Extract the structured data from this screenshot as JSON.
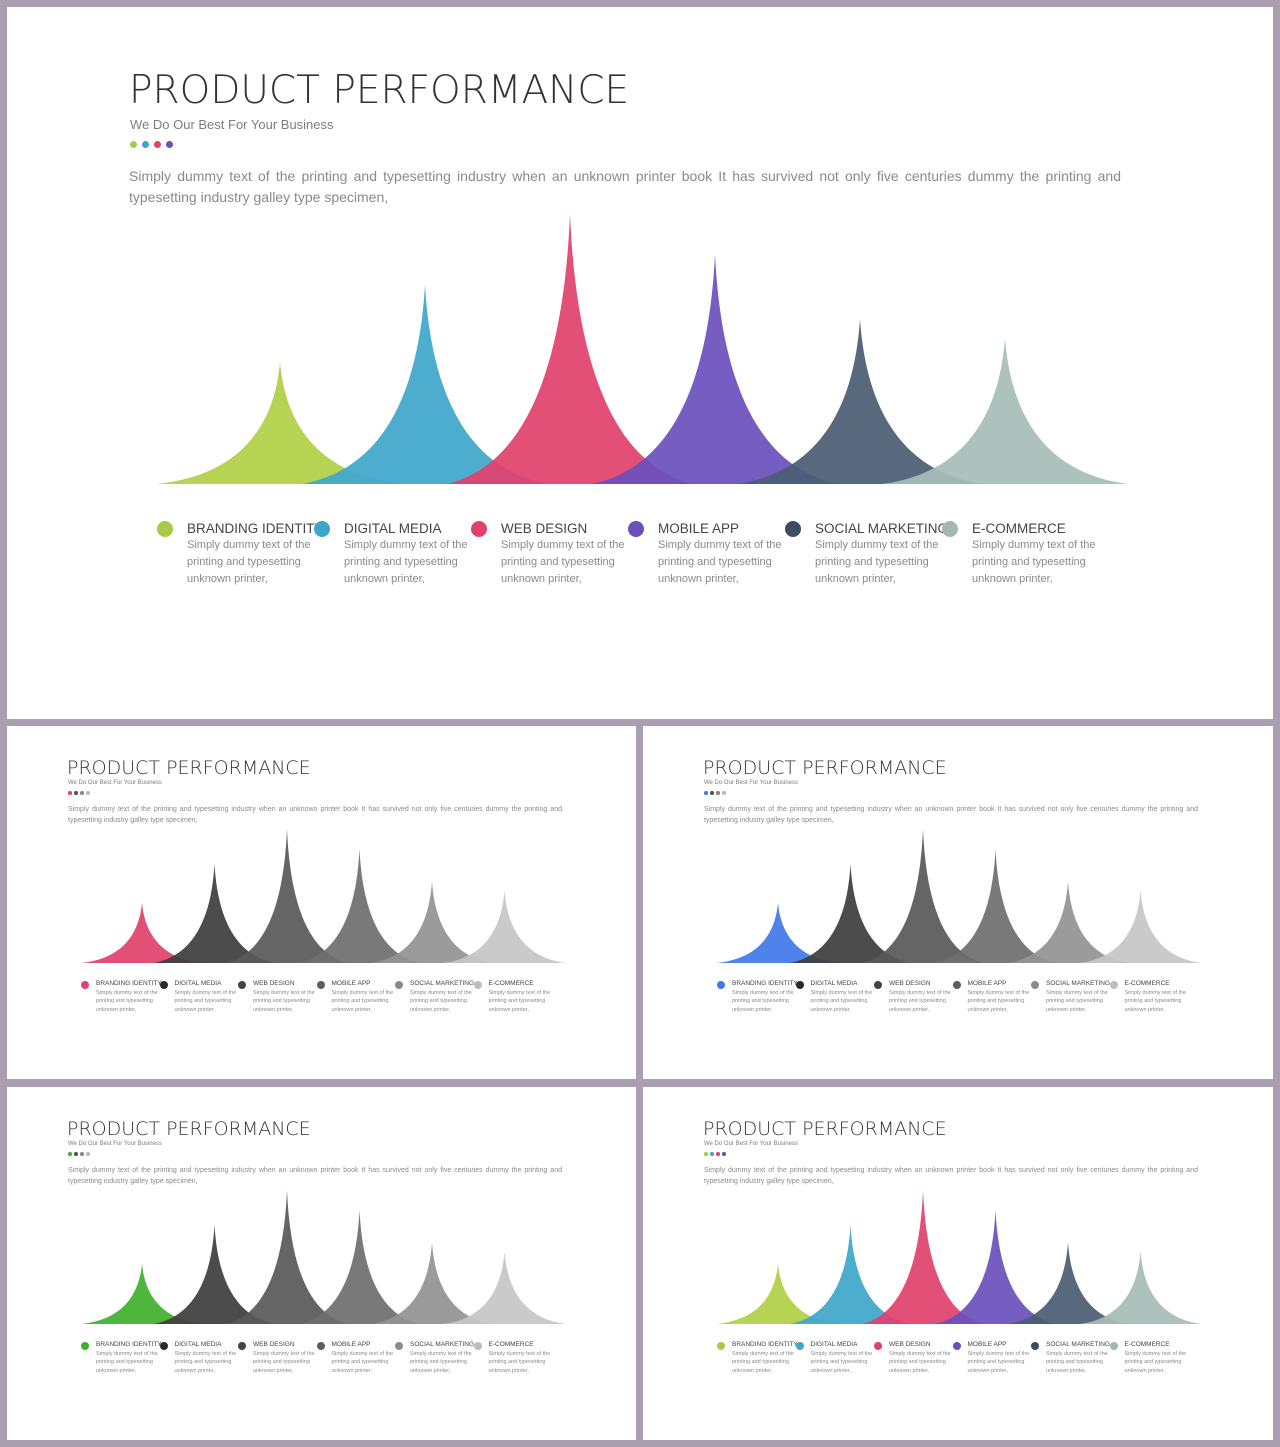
{
  "content": {
    "title": "PRODUCT PERFORMANCE",
    "subtitle": "We Do Our Best For Your Business",
    "description": "Simply dummy text of the printing and typesetting industry when an unknown printer book It has survived not only five centuries dummy the printing and typesetting industry galley type specimen,",
    "items": [
      {
        "label": "BRANDING IDENTITY",
        "desc": "Simply dummy text of the printing and typesetting unknown printer,"
      },
      {
        "label": "DIGITAL MEDIA",
        "desc": "Simply dummy text of the printing and typesetting unknown printer,"
      },
      {
        "label": "WEB DESIGN",
        "desc": "Simply dummy text of the printing and typesetting unknown printer,"
      },
      {
        "label": "MOBILE APP",
        "desc": "Simply dummy text of the printing and typesetting unknown printer,"
      },
      {
        "label": "SOCIAL MARKETING",
        "desc": "Simply dummy text of the printing and typesetting unknown printer,"
      },
      {
        "label": "E-COMMERCE",
        "desc": "Simply dummy text of the printing and typesetting unknown printer,"
      }
    ]
  },
  "peak_levels": [
    0.45,
    0.74,
    1.0,
    0.85,
    0.61,
    0.54
  ],
  "slides": [
    {
      "id": "slide-main",
      "dot_colors": [
        "#a9c94a",
        "#3fa6cb",
        "#e0426d",
        "#6a4fb8"
      ],
      "peak_colors": [
        "#b2d046",
        "#3fa7cb",
        "#e0426d",
        "#6b51bd",
        "#4b5e73",
        "#a7bdb8"
      ],
      "legend_dot_colors": [
        "#a9c94a",
        "#3fa6cb",
        "#e0426d",
        "#6a4fb8",
        "#3b4d61",
        "#a3b8b3"
      ]
    },
    {
      "id": "slide-pink",
      "dot_colors": [
        "#e0426d",
        "#555555",
        "#888888",
        "#bbbbbb"
      ],
      "peak_colors": [
        "#e0426d",
        "#3e3e3e",
        "#595959",
        "#6f6f6f",
        "#939393",
        "#c6c6c6"
      ],
      "legend_dot_colors": [
        "#e0426d",
        "#2a2a2a",
        "#444444",
        "#5e5e5e",
        "#8a8a8a",
        "#bdbdbd"
      ]
    },
    {
      "id": "slide-blue",
      "dot_colors": [
        "#3f7ae8",
        "#555555",
        "#888888",
        "#bbbbbb"
      ],
      "peak_colors": [
        "#3f7ae8",
        "#3e3e3e",
        "#595959",
        "#6f6f6f",
        "#939393",
        "#c6c6c6"
      ],
      "legend_dot_colors": [
        "#3f7ae8",
        "#2a2a2a",
        "#444444",
        "#5e5e5e",
        "#8a8a8a",
        "#bdbdbd"
      ]
    },
    {
      "id": "slide-green",
      "dot_colors": [
        "#3fb02c",
        "#555555",
        "#888888",
        "#bbbbbb"
      ],
      "peak_colors": [
        "#3fb02c",
        "#3e3e3e",
        "#595959",
        "#6f6f6f",
        "#939393",
        "#c6c6c6"
      ],
      "legend_dot_colors": [
        "#3fb02c",
        "#2a2a2a",
        "#444444",
        "#5e5e5e",
        "#8a8a8a",
        "#bdbdbd"
      ]
    },
    {
      "id": "slide-color-small",
      "dot_colors": [
        "#a9c94a",
        "#3fa6cb",
        "#e0426d",
        "#6a4fb8"
      ],
      "peak_colors": [
        "#b2d046",
        "#3fa7cb",
        "#e0426d",
        "#6b51bd",
        "#4b5e73",
        "#a7bdb8"
      ],
      "legend_dot_colors": [
        "#a9c94a",
        "#3fa6cb",
        "#e0426d",
        "#6a4fb8",
        "#3b4d61",
        "#a3b8b3"
      ]
    }
  ]
}
